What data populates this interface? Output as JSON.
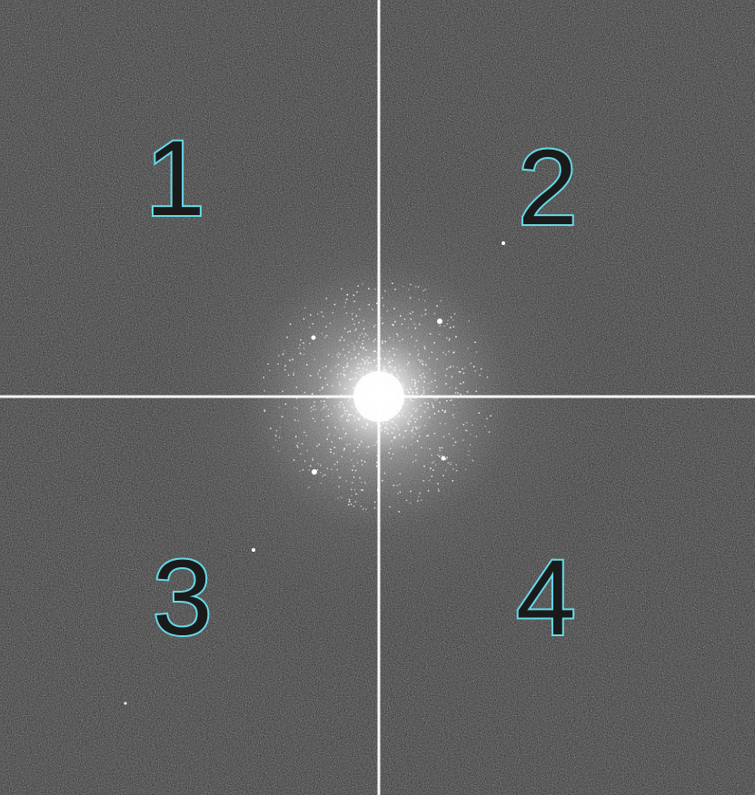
{
  "image": {
    "kind": "fourier-spectrum",
    "background_color": "#3a3a3a",
    "axis_color": "#ffffff",
    "label_color": "#66d9e6"
  },
  "quadrants": {
    "q1": "1",
    "q2": "2",
    "q3": "3",
    "q4": "4"
  }
}
